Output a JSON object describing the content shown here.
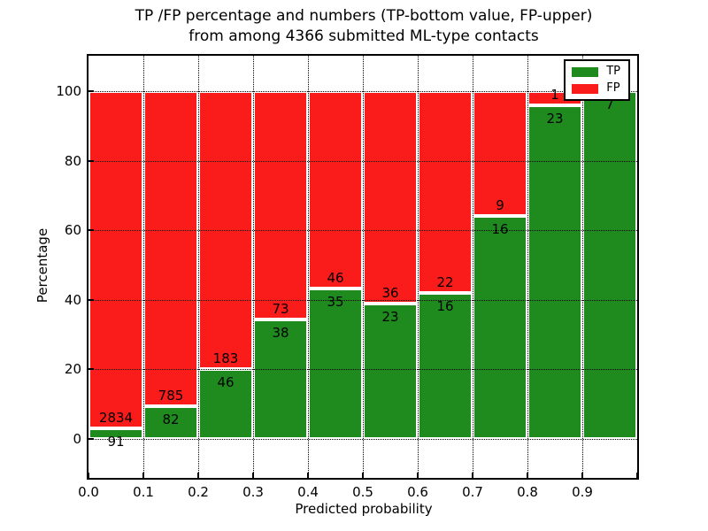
{
  "title": {
    "line1": "TP /FP percentage and numbers (TP-bottom value, FP-upper)",
    "line2": "from among 4366 submitted ML-type contacts"
  },
  "x_axis": {
    "label": "Predicted probability",
    "ticks": [
      "0.0",
      "0.1",
      "0.2",
      "0.3",
      "0.4",
      "0.5",
      "0.6",
      "0.7",
      "0.8",
      "0.9"
    ]
  },
  "y_axis": {
    "label": "Percentage",
    "ticks": [
      "0",
      "20",
      "40",
      "60",
      "80",
      "100"
    ]
  },
  "legend": {
    "items": [
      {
        "label": "TP",
        "color": "#1f8b1f"
      },
      {
        "label": "FP",
        "color": "#fa1b1b"
      }
    ]
  },
  "colors": {
    "tp_green": "#1f8b1f",
    "fp_red": "#fa1b1b",
    "grid": "#000000",
    "background": "#ffffff"
  },
  "chart_data": {
    "type": "bar",
    "subtype": "stacked-100-percent",
    "title": "TP /FP percentage and numbers (TP-bottom value, FP-upper) from among 4366 submitted ML-type contacts",
    "xlabel": "Predicted probability",
    "ylabel": "Percentage",
    "xlim": [
      0.0,
      1.0
    ],
    "ylim": [
      -11,
      110
    ],
    "grid": "dotted-both-axes",
    "legend_position": "upper-right",
    "total_contacts": 4366,
    "bin_width": 0.1,
    "bin_edges": [
      0.0,
      0.1,
      0.2,
      0.3,
      0.4,
      0.5,
      0.6,
      0.7,
      0.8,
      0.9,
      1.0
    ],
    "y_tick_values": [
      0,
      20,
      40,
      60,
      80,
      100
    ],
    "series": [
      {
        "name": "TP",
        "color": "#1f8b1f",
        "position": "bottom",
        "counts": [
          91,
          82,
          46,
          38,
          35,
          23,
          16,
          16,
          23,
          7
        ],
        "pct": [
          3.11,
          9.46,
          20.09,
          34.23,
          43.21,
          38.98,
          42.11,
          64.0,
          95.83,
          100.0
        ]
      },
      {
        "name": "FP",
        "color": "#fa1b1b",
        "position": "top",
        "counts": [
          2834,
          785,
          183,
          73,
          46,
          36,
          22,
          9,
          1,
          0
        ],
        "pct": [
          96.89,
          90.54,
          79.91,
          65.77,
          56.79,
          61.02,
          57.89,
          36.0,
          4.17,
          0.0
        ]
      }
    ]
  }
}
